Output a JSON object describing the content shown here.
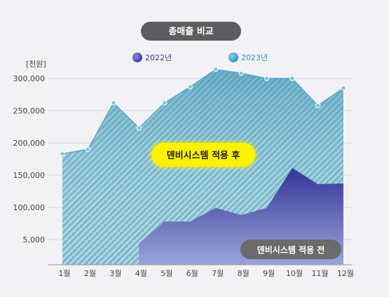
{
  "chart_data": {
    "type": "area",
    "title": "총매출 비교",
    "unit_label": "[천원]",
    "categories": [
      "1월",
      "2월",
      "3월",
      "4월",
      "5월",
      "6월",
      "7월",
      "8월",
      "9월",
      "10월",
      "11월",
      "12월"
    ],
    "y_ticks": [
      "300,000",
      "250,000",
      "200,000",
      "150,000",
      "100,000",
      "5,000"
    ],
    "series": [
      {
        "name": "2022년",
        "color": "#4040a8",
        "values": [
          null,
          null,
          null,
          43000,
          78000,
          78000,
          99000,
          88000,
          99000,
          161000,
          136000,
          137000
        ]
      },
      {
        "name": "2023년",
        "color": "#3aa0d8",
        "values": [
          183000,
          190000,
          262000,
          223000,
          262000,
          287000,
          314000,
          308000,
          300000,
          300000,
          258000,
          285000
        ]
      }
    ],
    "annotations": {
      "after": "덴비시스템 적용 후",
      "before": "덴비시스템 적용 전"
    },
    "colors": {
      "area_2023": "#5aa6c8",
      "area_2022": "#3b3e9c",
      "highlight": "#fff200"
    },
    "grid": true,
    "legend_position": "top"
  }
}
